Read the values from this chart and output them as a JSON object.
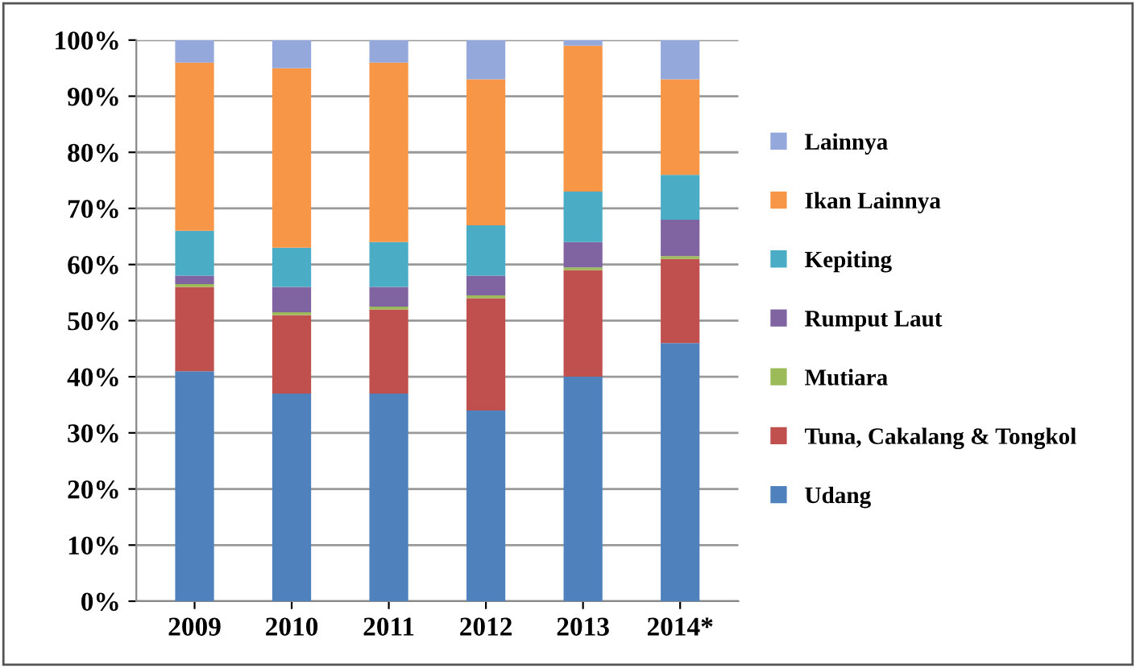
{
  "chart_data": {
    "type": "bar",
    "stacked": true,
    "categories": [
      "2009",
      "2010",
      "2011",
      "2012",
      "2013",
      "2014*"
    ],
    "series": [
      {
        "name": "Udang",
        "color": "#4f81bd",
        "values": [
          41,
          37,
          37,
          34,
          40,
          46
        ]
      },
      {
        "name": "Tuna, Cakalang & Tongkol",
        "color": "#c0504d",
        "values": [
          15,
          14,
          15,
          20,
          19,
          15
        ]
      },
      {
        "name": "Mutiara",
        "color": "#9bbb59",
        "values": [
          0.5,
          0.5,
          0.5,
          0.5,
          0.5,
          0.5
        ]
      },
      {
        "name": "Rumput Laut",
        "color": "#8064a2",
        "values": [
          1.5,
          4.5,
          3.5,
          3.5,
          4.5,
          6.5
        ]
      },
      {
        "name": "Kepiting",
        "color": "#4bacc6",
        "values": [
          8,
          7,
          8,
          9,
          9,
          8
        ]
      },
      {
        "name": "Ikan Lainnya",
        "color": "#f79646",
        "values": [
          30,
          32,
          32,
          26,
          26,
          17
        ]
      },
      {
        "name": "Lainnya",
        "color": "#95a8dc",
        "values": [
          4,
          5,
          4,
          7,
          1,
          7
        ]
      }
    ],
    "ylim": [
      0,
      100
    ],
    "yticks": [
      {
        "value": 0,
        "label": "0%"
      },
      {
        "value": 10,
        "label": "10%"
      },
      {
        "value": 20,
        "label": "20%"
      },
      {
        "value": 30,
        "label": "30%"
      },
      {
        "value": 40,
        "label": "40%"
      },
      {
        "value": 50,
        "label": "50%"
      },
      {
        "value": 60,
        "label": "60%"
      },
      {
        "value": 70,
        "label": "70%"
      },
      {
        "value": 80,
        "label": "80%"
      },
      {
        "value": 90,
        "label": "90%"
      },
      {
        "value": 100,
        "label": "100%"
      }
    ],
    "grid": "y",
    "legend": "right"
  }
}
